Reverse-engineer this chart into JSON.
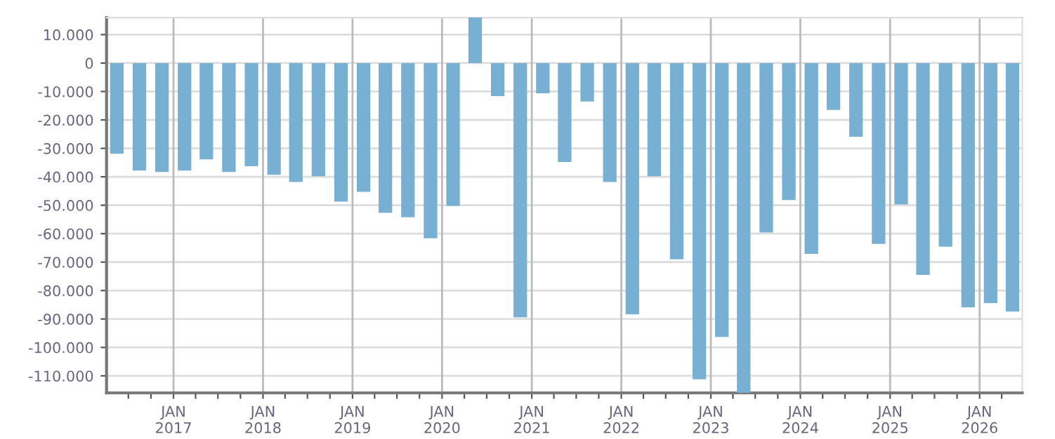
{
  "chart_data": {
    "type": "bar",
    "x": [
      "2016-05-15",
      "2016-08-15",
      "2016-11-15",
      "2017-02-15",
      "2017-05-15",
      "2017-08-15",
      "2017-11-15",
      "2018-02-15",
      "2018-05-15",
      "2018-08-15",
      "2018-11-15",
      "2019-02-15",
      "2019-05-15",
      "2019-08-15",
      "2019-11-15",
      "2020-02-15",
      "2020-05-15",
      "2020-08-15",
      "2020-11-15",
      "2021-02-15",
      "2021-05-15",
      "2021-08-15",
      "2021-11-15",
      "2022-02-15",
      "2022-05-15",
      "2022-08-15",
      "2022-11-15",
      "2023-02-15",
      "2023-05-15",
      "2023-08-15",
      "2023-11-15",
      "2024-02-15",
      "2024-05-15",
      "2024-08-15",
      "2024-11-15",
      "2025-02-15",
      "2025-05-15",
      "2025-08-15",
      "2025-11-15",
      "2026-02-15",
      "2026-05-15"
    ],
    "values": [
      -31900,
      -37800,
      -38300,
      -37800,
      -33900,
      -38300,
      -36300,
      -39300,
      -41800,
      -39800,
      -48700,
      -45300,
      -52700,
      -54200,
      -61600,
      -50200,
      16000,
      -11600,
      -89400,
      -10600,
      -34800,
      -13500,
      -41800,
      -88400,
      -39800,
      -69000,
      -111200,
      -96300,
      -116000,
      -59600,
      -48200,
      -67100,
      -16500,
      -25900,
      -63600,
      -49700,
      -74500,
      -64600,
      -85900,
      -84400,
      -87400
    ],
    "color": "#78b0d3",
    "ylim": [
      -116000,
      16000
    ],
    "yticks": [
      {
        "value": -110000,
        "label": "-110.000"
      },
      {
        "value": -100000,
        "label": "-100.000"
      },
      {
        "value": -90000,
        "label": "-90.000"
      },
      {
        "value": -80000,
        "label": "-80.000"
      },
      {
        "value": -70000,
        "label": "-70.000"
      },
      {
        "value": -60000,
        "label": "-60.000"
      },
      {
        "value": -50000,
        "label": "-50.000"
      },
      {
        "value": -40000,
        "label": "-40.000"
      },
      {
        "value": -30000,
        "label": "-30.000"
      },
      {
        "value": -20000,
        "label": "-20.000"
      },
      {
        "value": -10000,
        "label": "-10.000"
      },
      0,
      {
        "value": 10000,
        "label": "10.000"
      }
    ],
    "xlim": [
      "2016-04-03",
      "2026-06-24"
    ],
    "xticks": [
      {
        "value": "2016-07-01",
        "label": null
      },
      {
        "value": "2016-10-01",
        "label": null
      },
      {
        "value": "2017-01-01",
        "label": "JAN\n2017"
      },
      {
        "value": "2017-04-01",
        "label": null
      },
      {
        "value": "2017-07-01",
        "label": null
      },
      {
        "value": "2017-10-01",
        "label": null
      },
      {
        "value": "2018-01-01",
        "label": "JAN\n2018"
      },
      {
        "value": "2018-04-01",
        "label": null
      },
      {
        "value": "2018-07-01",
        "label": null
      },
      {
        "value": "2018-10-01",
        "label": null
      },
      {
        "value": "2019-01-01",
        "label": "JAN\n2019"
      },
      {
        "value": "2019-04-01",
        "label": null
      },
      {
        "value": "2019-07-01",
        "label": null
      },
      {
        "value": "2019-10-01",
        "label": null
      },
      {
        "value": "2020-01-01",
        "label": "JAN\n2020"
      },
      {
        "value": "2020-04-01",
        "label": null
      },
      {
        "value": "2020-07-01",
        "label": null
      },
      {
        "value": "2020-10-01",
        "label": null
      },
      {
        "value": "2021-01-01",
        "label": "JAN\n2021"
      },
      {
        "value": "2021-04-01",
        "label": null
      },
      {
        "value": "2021-07-01",
        "label": null
      },
      {
        "value": "2021-10-01",
        "label": null
      },
      {
        "value": "2022-01-01",
        "label": "JAN\n2022"
      },
      {
        "value": "2022-04-01",
        "label": null
      },
      {
        "value": "2022-07-01",
        "label": null
      },
      {
        "value": "2022-10-01",
        "label": null
      },
      {
        "value": "2023-01-01",
        "label": "JAN\n2023"
      },
      {
        "value": "2023-04-01",
        "label": null
      },
      {
        "value": "2023-07-01",
        "label": null
      },
      {
        "value": "2023-10-01",
        "label": null
      },
      {
        "value": "2024-01-01",
        "label": "JAN\n2024"
      },
      {
        "value": "2024-04-01",
        "label": null
      },
      {
        "value": "2024-07-01",
        "label": null
      },
      {
        "value": "2024-10-01",
        "label": null
      },
      {
        "value": "2025-01-01",
        "label": "JAN\n2025"
      },
      {
        "value": "2025-04-01",
        "label": null
      },
      {
        "value": "2025-07-01",
        "label": null
      },
      {
        "value": "2025-10-01",
        "label": null
      },
      {
        "value": "2026-01-01",
        "label": "JAN\n2026"
      },
      {
        "value": "2026-04-01",
        "label": null
      }
    ],
    "grid": true,
    "legend": false
  }
}
